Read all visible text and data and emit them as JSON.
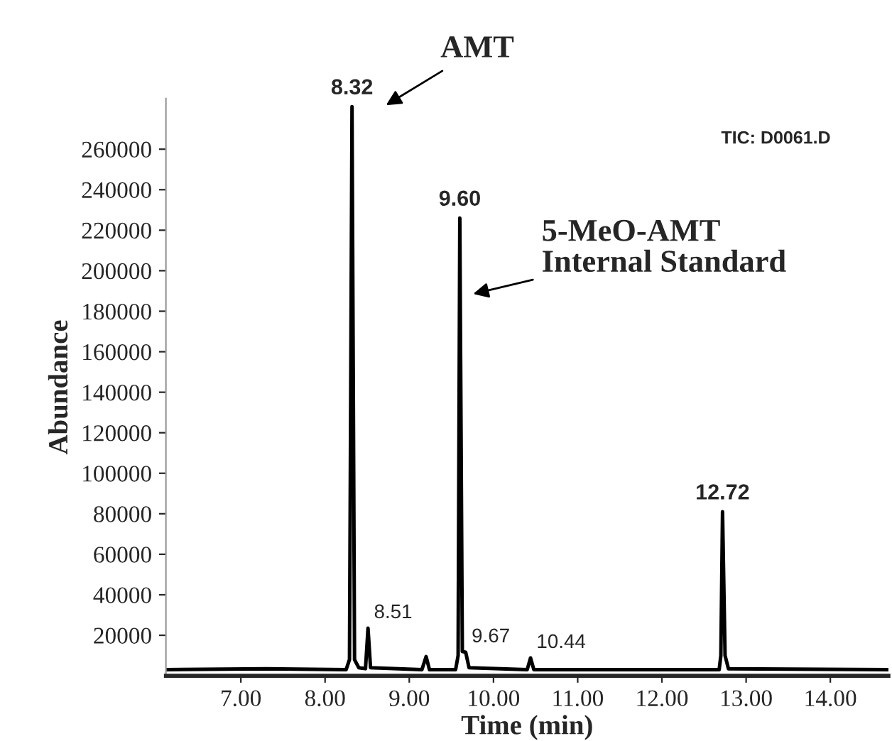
{
  "chart_data": {
    "type": "line",
    "xlabel": "Time (min)",
    "ylabel": "Abundance",
    "xlim": [
      6.11,
      14.69
    ],
    "ylim": [
      0,
      285000
    ],
    "xticks": [
      {
        "value": 7,
        "label": "7.00"
      },
      {
        "value": 8,
        "label": "8.00"
      },
      {
        "value": 9,
        "label": "9.00"
      },
      {
        "value": 10,
        "label": "10.00"
      },
      {
        "value": 11,
        "label": "11.00"
      },
      {
        "value": 12,
        "label": "12.00"
      },
      {
        "value": 13,
        "label": "13.00"
      },
      {
        "value": 14,
        "label": "14.00"
      }
    ],
    "yticks": [
      20000,
      40000,
      60000,
      80000,
      100000,
      120000,
      140000,
      160000,
      180000,
      200000,
      220000,
      240000,
      260000
    ],
    "grid": false,
    "marker": "none",
    "line_style": "solid",
    "series": [
      {
        "color": "#000000",
        "x": [
          6.11,
          7.3,
          8.25,
          8.29,
          8.32,
          8.35,
          8.4,
          8.48,
          8.51,
          8.54,
          9.15,
          9.2,
          9.24,
          9.55,
          9.58,
          9.6,
          9.63,
          9.67,
          9.71,
          10.4,
          10.44,
          10.48,
          12.68,
          12.7,
          12.72,
          12.75,
          12.79,
          14.69
        ],
        "values": [
          3000,
          3500,
          3000,
          8000,
          281000,
          8000,
          4000,
          3500,
          23500,
          4000,
          3000,
          9500,
          3000,
          3000,
          10000,
          226000,
          12000,
          11600,
          4000,
          3000,
          8800,
          3000,
          3000,
          10000,
          81000,
          10000,
          3500,
          3000
        ]
      }
    ],
    "annotations": [
      {
        "text": "8.32",
        "x": 8.32,
        "y": 281000
      },
      {
        "text": "9.60",
        "x": 9.6,
        "y": 226000
      },
      {
        "text": "12.72",
        "x": 12.72,
        "y": 81000
      },
      {
        "text": "8.51",
        "x": 8.51,
        "y": 23500
      },
      {
        "text": "9.67",
        "x": 9.67,
        "y": 11600
      },
      {
        "text": "10.44",
        "x": 10.44,
        "y": 8800
      },
      "AMT",
      "5-MeO-AMT\nInternal Standard",
      "TIC: D0061.D"
    ]
  }
}
